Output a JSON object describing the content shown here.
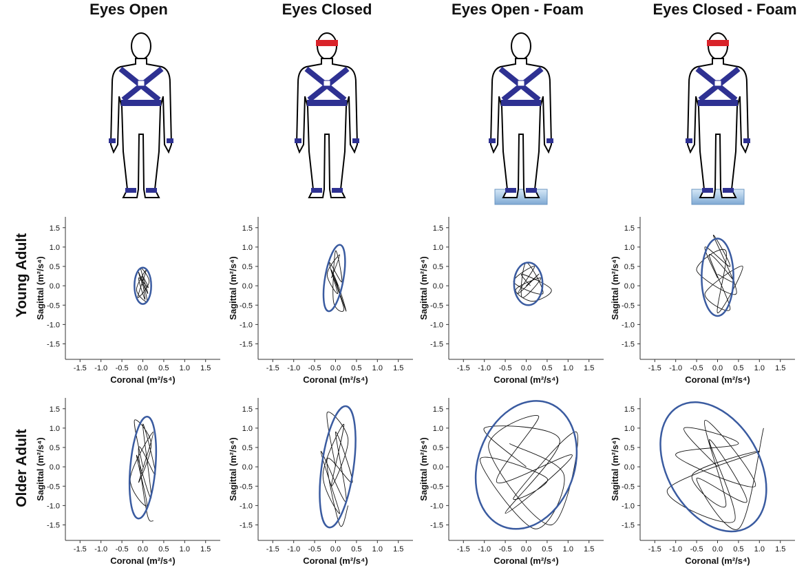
{
  "column_titles": [
    "Eyes Open",
    "Eyes Closed",
    "Eyes Open - Foam",
    "Eyes Closed - Foam"
  ],
  "row_labels": [
    "Young Adult",
    "Older Adult"
  ],
  "chart_data": [
    {
      "type": "trace",
      "xlabel": "Coronal (m²/s⁴)",
      "ylabel": "Sagittal (m²/s⁴)",
      "xlim": [
        -1.85,
        1.85
      ],
      "ylim": [
        -1.9,
        1.78
      ],
      "xticks": [
        -1.5,
        {
          "value": -1,
          "label": "-1.0"
        },
        -0.5,
        {
          "value": 0,
          "label": "0.0"
        },
        0.5,
        {
          "value": 1,
          "label": "1.0"
        },
        1.5
      ],
      "yticks": [
        -1.5,
        {
          "value": -1,
          "label": "-1.0"
        },
        -0.5,
        {
          "value": 0,
          "label": "0.0"
        },
        0.5,
        {
          "value": 1,
          "label": "1.0"
        },
        1.5
      ],
      "color": "#111111",
      "ellipse_color": "#3a5ba0",
      "x": [
        0,
        -0.1,
        0.12,
        -0.05,
        0.15,
        -0.12,
        0.08,
        -0.15,
        0.1,
        -0.02,
        0.13,
        -0.1,
        0.05,
        0
      ],
      "y": [
        0,
        0.35,
        -0.2,
        0.45,
        0.1,
        -0.3,
        0.4,
        -0.1,
        -0.4,
        0.25,
        -0.05,
        0.2,
        -0.35,
        0.05
      ],
      "ellipse": {
        "cx": 0,
        "cy": 0,
        "rx": 0.2,
        "ry": 0.47,
        "angle": 0
      }
    },
    {
      "type": "trace",
      "xlabel": "Coronal (m²/s⁴)",
      "ylabel": "Sagittal (m²/s⁴)",
      "xlim": [
        -1.85,
        1.85
      ],
      "ylim": [
        -1.9,
        1.78
      ],
      "xticks": [
        -1.5,
        {
          "value": -1,
          "label": "-1.0"
        },
        -0.5,
        {
          "value": 0,
          "label": "0.0"
        },
        0.5,
        {
          "value": 1,
          "label": "1.0"
        },
        1.5
      ],
      "yticks": [
        -1.5,
        {
          "value": -1,
          "label": "-1.0"
        },
        -0.5,
        {
          "value": 0,
          "label": "0.0"
        },
        0.5,
        {
          "value": 1,
          "label": "1.0"
        },
        1.5
      ],
      "color": "#111111",
      "ellipse_color": "#3a5ba0",
      "x": [
        -0.1,
        0.1,
        -0.2,
        0.05,
        -0.15,
        0.15,
        0,
        -0.05,
        0.2,
        -0.1,
        0.1,
        0.25,
        -0.05,
        0.05
      ],
      "y": [
        0.2,
        0.8,
        0.3,
        -0.2,
        0.6,
        0.1,
        0.9,
        -0.4,
        -0.6,
        0.4,
        -0.1,
        -0.65,
        0.3,
        0
      ],
      "ellipse": {
        "cx": -0.03,
        "cy": 0.2,
        "rx": 0.22,
        "ry": 0.87,
        "angle": 10
      }
    },
    {
      "type": "trace",
      "xlabel": "Coronal (m²/s⁴)",
      "ylabel": "Sagittal (m²/s⁴)",
      "xlim": [
        -1.85,
        1.85
      ],
      "ylim": [
        -1.9,
        1.78
      ],
      "xticks": [
        -1.5,
        {
          "value": -1,
          "label": "-1.0"
        },
        -0.5,
        {
          "value": 0,
          "label": "0.0"
        },
        0.5,
        {
          "value": 1,
          "label": "1.0"
        },
        1.5
      ],
      "yticks": [
        -1.5,
        {
          "value": -1,
          "label": "-1.0"
        },
        -0.5,
        {
          "value": 0,
          "label": "0.0"
        },
        0.5,
        {
          "value": 1,
          "label": "1.0"
        },
        1.5
      ],
      "color": "#111111",
      "ellipse_color": "#3a5ba0",
      "x": [
        0,
        0.3,
        -0.2,
        0.2,
        -0.3,
        0.4,
        0,
        -0.1,
        0.35,
        -0.25,
        0.15,
        0.6,
        -0.1,
        0.1
      ],
      "y": [
        0,
        0.3,
        -0.2,
        0.5,
        0.1,
        -0.2,
        0.6,
        -0.3,
        0.2,
        -0.1,
        -0.4,
        -0.1,
        0.3,
        0
      ],
      "ellipse": {
        "cx": 0.05,
        "cy": 0.05,
        "rx": 0.34,
        "ry": 0.55,
        "angle": 0
      }
    },
    {
      "type": "trace",
      "xlabel": "Coronal (m²/s⁴)",
      "ylabel": "Sagittal (m²/s⁴)",
      "xlim": [
        -1.85,
        1.85
      ],
      "ylim": [
        -1.9,
        1.78
      ],
      "xticks": [
        -1.5,
        {
          "value": -1,
          "label": "-1.0"
        },
        -0.5,
        {
          "value": 0,
          "label": "0.0"
        },
        0.5,
        {
          "value": 1,
          "label": "1.0"
        },
        1.5
      ],
      "yticks": [
        -1.5,
        {
          "value": -1,
          "label": "-1.0"
        },
        -0.5,
        {
          "value": 0,
          "label": "0.0"
        },
        0.5,
        {
          "value": 1,
          "label": "1.0"
        },
        1.5
      ],
      "color": "#111111",
      "ellipse_color": "#3a5ba0",
      "x": [
        0,
        -0.3,
        0.3,
        -0.1,
        0.45,
        -0.5,
        0.2,
        0,
        0.6,
        -0.3,
        0.3,
        -0.2,
        0.4,
        0
      ],
      "y": [
        0.2,
        1.0,
        0.5,
        1.3,
        -0.2,
        0.4,
        0.9,
        -0.7,
        0.5,
        -0.2,
        -0.6,
        0.8,
        0.1,
        0.3
      ],
      "ellipse": {
        "cx": 0,
        "cy": 0.22,
        "rx": 0.38,
        "ry": 1.0,
        "angle": 0
      }
    },
    {
      "type": "trace",
      "xlabel": "Coronal (m²/s⁴)",
      "ylabel": "Sagittal (m²/s⁴)",
      "xlim": [
        -1.85,
        1.85
      ],
      "ylim": [
        -1.9,
        1.78
      ],
      "xticks": [
        -1.5,
        {
          "value": -1,
          "label": "-1.0"
        },
        -0.5,
        {
          "value": 0,
          "label": "0.0"
        },
        0.5,
        {
          "value": 1,
          "label": "1.0"
        },
        1.5
      ],
      "yticks": [
        -1.5,
        {
          "value": -1,
          "label": "-1.0"
        },
        -0.5,
        {
          "value": 0,
          "label": "0.0"
        },
        0.5,
        {
          "value": 1,
          "label": "1.0"
        },
        1.5
      ],
      "color": "#111111",
      "ellipse_color": "#3a5ba0",
      "x": [
        0,
        -0.2,
        0.2,
        -0.1,
        0.25,
        -0.3,
        0.1,
        -0.15,
        0.2,
        0,
        0.3,
        -0.1,
        0.1,
        0.25
      ],
      "y": [
        0,
        1.2,
        0.6,
        -0.4,
        0.9,
        -0.3,
        -1.0,
        0.3,
        -0.8,
        1.1,
        -0.2,
        0.5,
        -1.2,
        -1.4
      ],
      "ellipse": {
        "cx": 0,
        "cy": -0.02,
        "rx": 0.3,
        "ry": 1.32,
        "angle": 5
      }
    },
    {
      "type": "trace",
      "xlabel": "Coronal (m²/s⁴)",
      "ylabel": "Sagittal (m²/s⁴)",
      "xlim": [
        -1.85,
        1.85
      ],
      "ylim": [
        -1.9,
        1.78
      ],
      "xticks": [
        -1.5,
        {
          "value": -1,
          "label": "-1.0"
        },
        -0.5,
        {
          "value": 0,
          "label": "0.0"
        },
        0.5,
        {
          "value": 1,
          "label": "1.0"
        },
        1.5
      ],
      "yticks": [
        -1.5,
        {
          "value": -1,
          "label": "-1.0"
        },
        -0.5,
        {
          "value": 0,
          "label": "0.0"
        },
        0.5,
        {
          "value": 1,
          "label": "1.0"
        },
        1.5
      ],
      "color": "#111111",
      "ellipse_color": "#3a5ba0",
      "x": [
        0,
        -0.2,
        0.3,
        -0.1,
        0.2,
        -0.3,
        0.1,
        -0.35,
        0.25,
        0,
        0.4,
        -0.2,
        0.1,
        0.3
      ],
      "y": [
        0,
        1.4,
        0.7,
        -0.5,
        1.1,
        -0.2,
        -1.2,
        0.4,
        -0.9,
        0.9,
        -0.4,
        0.2,
        -1.5,
        -1.0
      ],
      "ellipse": {
        "cx": 0.05,
        "cy": 0,
        "rx": 0.38,
        "ry": 1.58,
        "angle": 8
      }
    },
    {
      "type": "trace",
      "xlabel": "Coronal (m²/s⁴)",
      "ylabel": "Sagittal (m²/s⁴)",
      "xlim": [
        -1.85,
        1.85
      ],
      "ylim": [
        -1.9,
        1.78
      ],
      "xticks": [
        -1.5,
        {
          "value": -1,
          "label": "-1.0"
        },
        -0.5,
        {
          "value": 0,
          "label": "0.0"
        },
        0.5,
        {
          "value": 1,
          "label": "1.0"
        },
        1.5
      ],
      "yticks": [
        -1.5,
        {
          "value": -1,
          "label": "-1.0"
        },
        -0.5,
        {
          "value": 0,
          "label": "0.0"
        },
        0.5,
        {
          "value": 1,
          "label": "1.0"
        },
        1.5
      ],
      "color": "#111111",
      "ellipse_color": "#3a5ba0",
      "x": [
        0,
        -1.0,
        0.8,
        -0.5,
        1.1,
        -0.7,
        0.3,
        -0.9,
        0.6,
        1.2,
        -0.3,
        0.5,
        -1.1,
        0.2,
        0.9,
        -0.4
      ],
      "y": [
        0,
        1.0,
        0.7,
        -1.2,
        0.3,
        -0.4,
        1.3,
        0.5,
        -1.5,
        0.9,
        -0.8,
        -0.3,
        0.2,
        -1.6,
        -0.2,
        0.6
      ],
      "ellipse": {
        "cx": 0,
        "cy": 0.05,
        "rx": 1.15,
        "ry": 1.7,
        "angle": 20
      }
    },
    {
      "type": "trace",
      "xlabel": "Coronal (m²/s⁴)",
      "ylabel": "Sagittal (m²/s⁴)",
      "xlim": [
        -1.85,
        1.85
      ],
      "ylim": [
        -1.9,
        1.78
      ],
      "xticks": [
        -1.5,
        {
          "value": -1,
          "label": "-1.0"
        },
        -0.5,
        {
          "value": 0,
          "label": "0.0"
        },
        0.5,
        {
          "value": 1,
          "label": "1.0"
        },
        1.5
      ],
      "yticks": [
        -1.5,
        {
          "value": -1,
          "label": "-1.0"
        },
        -0.5,
        {
          "value": 0,
          "label": "0.0"
        },
        0.5,
        {
          "value": 1,
          "label": "1.0"
        },
        1.5
      ],
      "color": "#111111",
      "ellipse_color": "#3a5ba0",
      "x": [
        0,
        -0.8,
        0.5,
        -1.0,
        0.9,
        -0.3,
        0.2,
        -0.6,
        1.0,
        -1.2,
        0.4,
        -0.2,
        0.7,
        -0.5,
        0.5,
        1.1
      ],
      "y": [
        0,
        1.0,
        0.6,
        0.3,
        -0.5,
        1.2,
        -1.0,
        -0.2,
        0.4,
        -0.6,
        -1.4,
        0.7,
        -0.9,
        -0.3,
        -1.6,
        1.0
      ],
      "ellipse": {
        "cx": -0.1,
        "cy": 0,
        "rx": 1.1,
        "ry": 1.8,
        "angle": -30
      }
    }
  ]
}
